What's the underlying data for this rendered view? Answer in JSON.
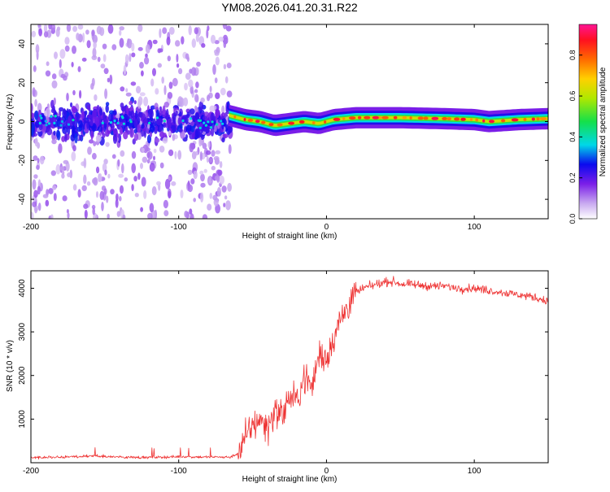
{
  "title": "YM08.2026.041.20.31.R22",
  "chart_data": [
    {
      "type": "heatmap",
      "xlabel": "Height of straight line (km)",
      "ylabel": "Frequency (Hz)",
      "xlim": [
        -200,
        150
      ],
      "ylim": [
        -50,
        50
      ],
      "xticks": [
        -200,
        -100,
        0,
        100
      ],
      "yticks": [
        -40,
        -20,
        0,
        20,
        40
      ],
      "description_of_data": "Broad noisy spectral spread (±50 Hz, amplitude ~0.2–0.4) for heights < -65 km; narrow band near 0 Hz (amplitude ~0.8–0.95) for heights > -65 km",
      "colorbar": {
        "label": "Normalized spectral amplitude",
        "range": [
          0,
          0.95
        ],
        "ticks": [
          0.0,
          0.2,
          0.4,
          0.6,
          0.8
        ]
      },
      "band_center_hz": [
        {
          "x": -65,
          "y": 3
        },
        {
          "x": -55,
          "y": 1
        },
        {
          "x": -45,
          "y": 0
        },
        {
          "x": -35,
          "y": -2
        },
        {
          "x": -25,
          "y": -1
        },
        {
          "x": -15,
          "y": 0
        },
        {
          "x": -5,
          "y": -1
        },
        {
          "x": 5,
          "y": 1
        },
        {
          "x": 20,
          "y": 2
        },
        {
          "x": 50,
          "y": 2
        },
        {
          "x": 80,
          "y": 1.5
        },
        {
          "x": 100,
          "y": 1
        },
        {
          "x": 110,
          "y": 0
        },
        {
          "x": 130,
          "y": 1
        },
        {
          "x": 150,
          "y": 1.5
        }
      ]
    },
    {
      "type": "line",
      "xlabel": "Height of straight line (km)",
      "ylabel": "SNR (10 * v/v)",
      "xlim": [
        -200,
        150
      ],
      "ylim": [
        0,
        4400
      ],
      "xticks": [
        -200,
        -100,
        0,
        100
      ],
      "yticks": [
        1000,
        2000,
        3000,
        4000
      ],
      "color": "#ee3333",
      "series": [
        {
          "name": "SNR",
          "x": [
            -200,
            -180,
            -160,
            -140,
            -120,
            -100,
            -80,
            -65,
            -58,
            -52,
            -45,
            -40,
            -35,
            -30,
            -25,
            -20,
            -15,
            -10,
            -5,
            0,
            5,
            10,
            15,
            20,
            25,
            30,
            35,
            40,
            45,
            50,
            60,
            70,
            80,
            90,
            100,
            110,
            120,
            130,
            140,
            150
          ],
          "values": [
            120,
            130,
            150,
            130,
            120,
            140,
            130,
            130,
            250,
            800,
            1000,
            800,
            1200,
            1100,
            1500,
            1400,
            2000,
            1700,
            2500,
            2400,
            2900,
            3300,
            3650,
            3900,
            4000,
            4050,
            4100,
            4150,
            4150,
            4100,
            4080,
            4050,
            4050,
            4000,
            4000,
            3950,
            3900,
            3850,
            3800,
            3700
          ]
        }
      ]
    }
  ]
}
